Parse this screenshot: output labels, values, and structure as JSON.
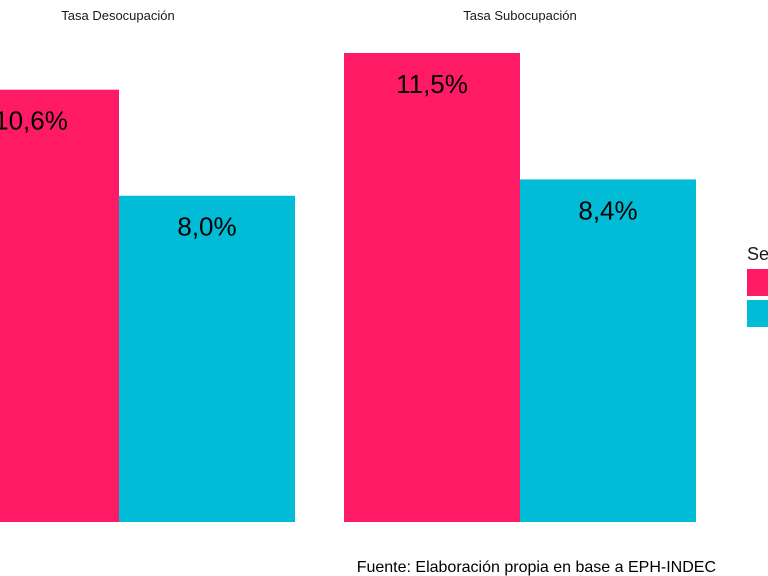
{
  "chart_data": {
    "type": "bar",
    "facets": [
      {
        "title": "Tasa Desocupación",
        "bars": [
          {
            "series": 0,
            "value": 10.6,
            "label": "10,6%"
          },
          {
            "series": 1,
            "value": 8.0,
            "label": "8,0%"
          }
        ]
      },
      {
        "title": "Tasa Subocupación",
        "bars": [
          {
            "series": 0,
            "value": 11.5,
            "label": "11,5%"
          },
          {
            "series": 1,
            "value": 8.4,
            "label": "8,4%"
          }
        ]
      }
    ],
    "series_colors": [
      "#ff1a66",
      "#00bcd6"
    ],
    "ylim": [
      0,
      11.5
    ],
    "legend": {
      "title": "Se",
      "placement": "right"
    },
    "caption": "Fuente: Elaboración propia en base a EPH-INDEC",
    "grid": false
  }
}
